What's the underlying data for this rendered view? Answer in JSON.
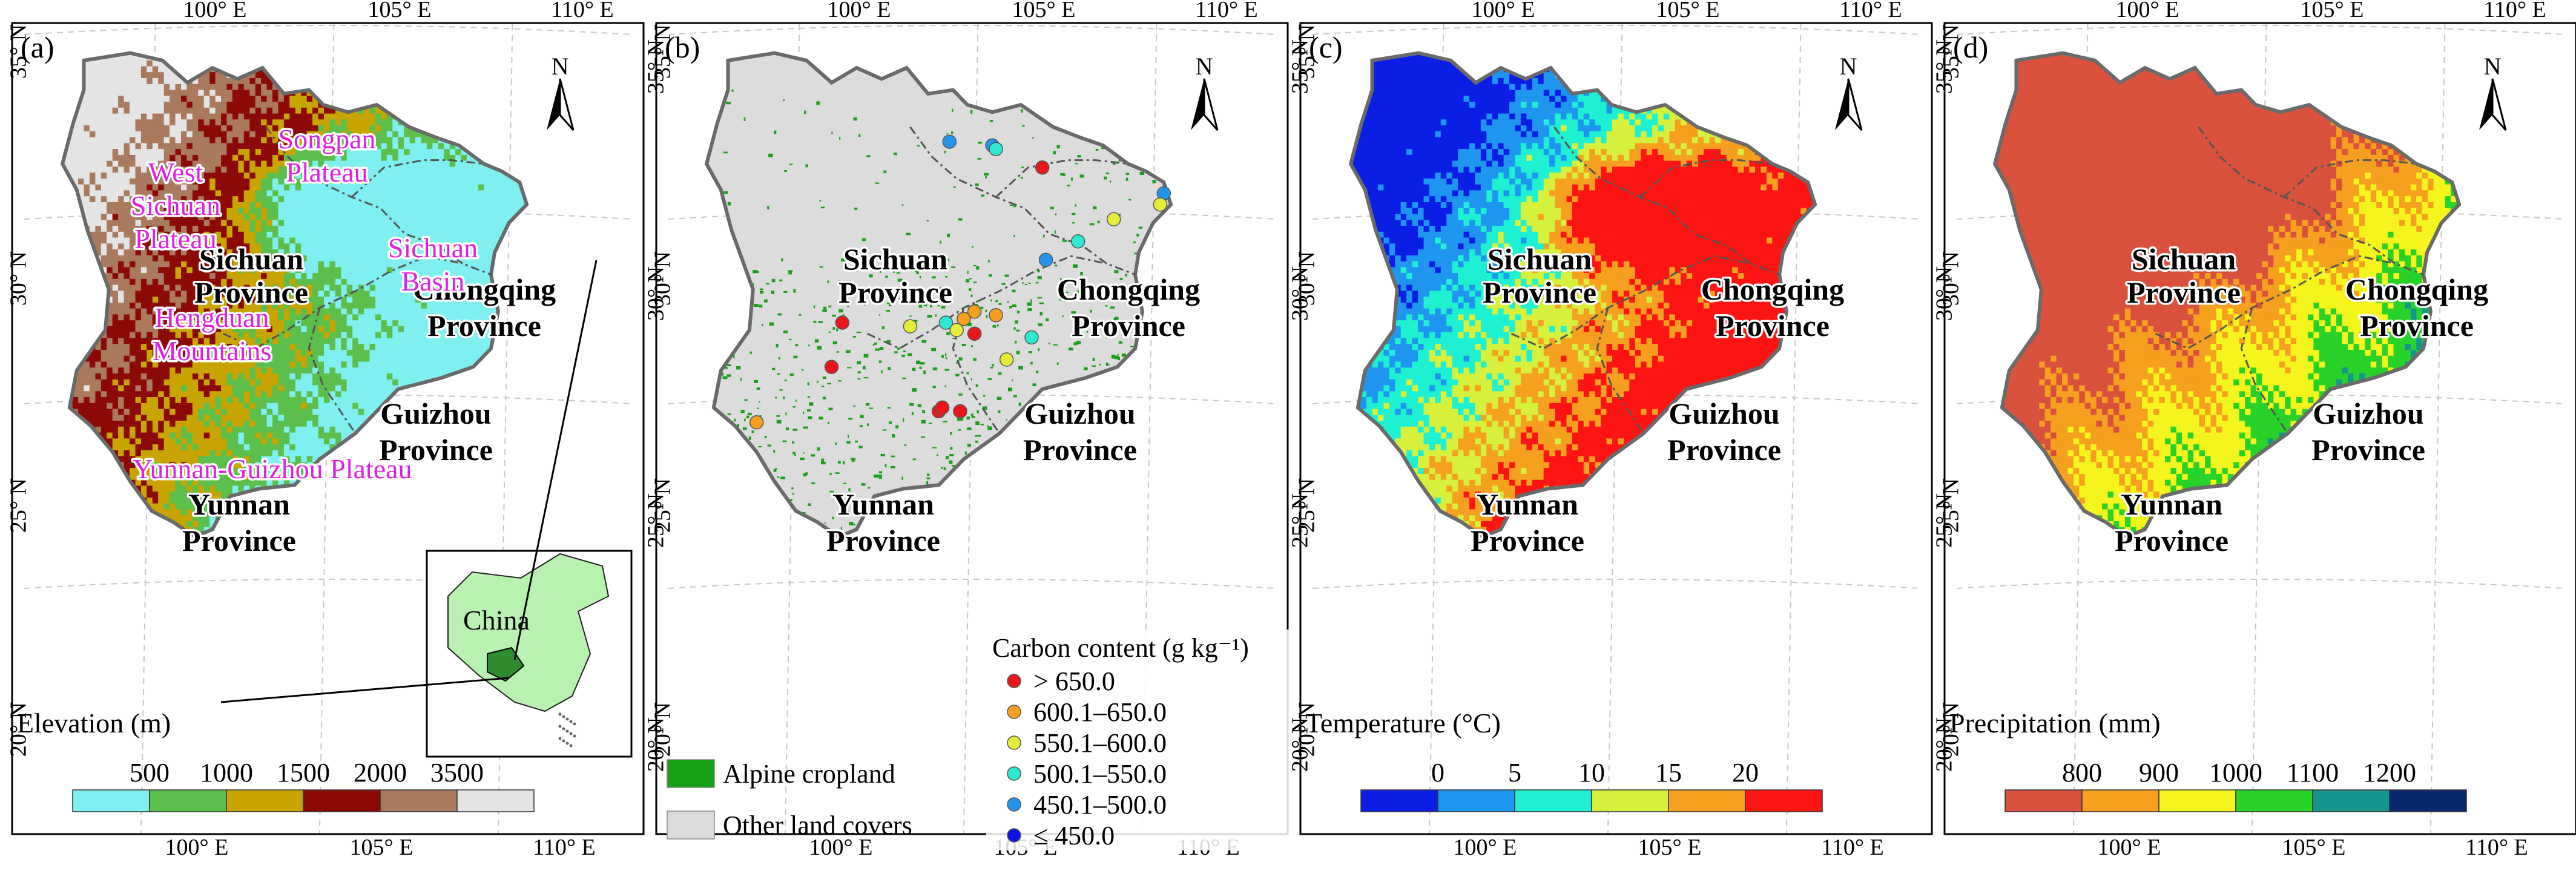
{
  "panels": [
    {
      "letter": "(a)",
      "variable_title": "Elevation (m)",
      "colorbar": {
        "labels": [
          "500",
          "1000",
          "1500",
          "2000",
          "3500"
        ],
        "colors": [
          "#7fefef",
          "#5cbf4b",
          "#c8a400",
          "#8b0a05",
          "#a97a5e",
          "#e4e4e4"
        ]
      },
      "map_colors": [
        "#7fefef",
        "#5cbf4b",
        "#c8a400",
        "#8b0a05",
        "#a97a5e",
        "#e4e4e4"
      ],
      "provinces": [
        "Sichuan Province",
        "Chongqing Province",
        "Guizhou Province",
        "Yunnan Province"
      ],
      "physiographic_labels": [
        "Songpan Plateau",
        "West Sichuan Plateau",
        "Sichuan Basin",
        "Hengduan Mountains",
        "Yunnan-Guizhou Plateau"
      ],
      "inset_label": "China",
      "inset_colors": {
        "land": "#b9f2b0",
        "highlight": "#2e8b2e"
      }
    },
    {
      "letter": "(b)",
      "provinces": [
        "Sichuan Province",
        "Chongqing Province",
        "Guizhou Province",
        "Yunnan Province"
      ],
      "land_legend": [
        {
          "label": "Alpine cropland",
          "color": "#18a018"
        },
        {
          "label": "Other land covers",
          "color": "#dcdcdc"
        }
      ],
      "carbon_legend": {
        "title": "Carbon content (g kg⁻¹)",
        "items": [
          {
            "label": "> 650.0",
            "color": "#e8181a"
          },
          {
            "label": "600.1–650.0",
            "color": "#f5a01e"
          },
          {
            "label": "550.1–600.0",
            "color": "#e6ec3a"
          },
          {
            "label": "500.1–550.0",
            "color": "#2ee8d2"
          },
          {
            "label": "450.1–500.0",
            "color": "#2294ec"
          },
          {
            "label": "≤ 450.0",
            "color": "#0a14e6"
          }
        ]
      }
    },
    {
      "letter": "(c)",
      "variable_title": "Temperature (°C)",
      "colorbar": {
        "labels": [
          "0",
          "5",
          "10",
          "15",
          "20"
        ],
        "colors": [
          "#0a1ee6",
          "#1e96f0",
          "#1ef0d2",
          "#d7f03c",
          "#f5a01e",
          "#ff1414"
        ]
      },
      "map_colors": [
        "#0a1ee6",
        "#1e96f0",
        "#1ef0d2",
        "#d7f03c",
        "#f5a01e",
        "#ff1414"
      ],
      "provinces": [
        "Sichuan Province",
        "Chongqing Province",
        "Guizhou Province",
        "Yunnan Province"
      ]
    },
    {
      "letter": "(d)",
      "variable_title": "Precipitation (mm)",
      "colorbar": {
        "labels": [
          "800",
          "900",
          "1000",
          "1100",
          "1200"
        ],
        "colors": [
          "#d9503c",
          "#f5a01e",
          "#f5f51e",
          "#28d228",
          "#14968c",
          "#0a2870"
        ]
      },
      "map_colors": [
        "#d9503c",
        "#f5a01e",
        "#f5f51e",
        "#28d228",
        "#14968c",
        "#0a2870"
      ],
      "provinces": [
        "Sichuan Province",
        "Chongqing Province",
        "Guizhou Province",
        "Yunnan Province"
      ]
    }
  ],
  "axis_ticks": {
    "lon": [
      "100° E",
      "105° E",
      "110° E"
    ],
    "lat": [
      "35° N",
      "30° N",
      "25° N",
      "20° N"
    ]
  },
  "north_label": "N",
  "sample_points": [
    {
      "lon": 104.2,
      "lat": 31.9,
      "class": 4
    },
    {
      "lon": 105.4,
      "lat": 31.8,
      "class": 4
    },
    {
      "lon": 105.5,
      "lat": 31.7,
      "class": 3
    },
    {
      "lon": 106.8,
      "lat": 31.2,
      "class": 0
    },
    {
      "lon": 110.2,
      "lat": 30.5,
      "class": 4
    },
    {
      "lon": 110.1,
      "lat": 30.2,
      "class": 2
    },
    {
      "lon": 108.8,
      "lat": 29.8,
      "class": 2
    },
    {
      "lon": 107.8,
      "lat": 29.2,
      "class": 3
    },
    {
      "lon": 106.9,
      "lat": 28.7,
      "class": 4
    },
    {
      "lon": 101.2,
      "lat": 27.0,
      "class": 0
    },
    {
      "lon": 103.1,
      "lat": 26.9,
      "class": 2
    },
    {
      "lon": 104.9,
      "lat": 27.3,
      "class": 1
    },
    {
      "lon": 104.6,
      "lat": 27.1,
      "class": 1
    },
    {
      "lon": 105.5,
      "lat": 27.2,
      "class": 1
    },
    {
      "lon": 104.1,
      "lat": 27.0,
      "class": 3
    },
    {
      "lon": 104.4,
      "lat": 26.8,
      "class": 2
    },
    {
      "lon": 104.9,
      "lat": 26.7,
      "class": 0
    },
    {
      "lon": 106.5,
      "lat": 26.6,
      "class": 3
    },
    {
      "lon": 100.9,
      "lat": 25.8,
      "class": 0
    },
    {
      "lon": 105.8,
      "lat": 26.0,
      "class": 2
    },
    {
      "lon": 103.9,
      "lat": 24.6,
      "class": 0
    },
    {
      "lon": 104.0,
      "lat": 24.7,
      "class": 0
    },
    {
      "lon": 104.5,
      "lat": 24.6,
      "class": 0
    },
    {
      "lon": 98.8,
      "lat": 24.3,
      "class": 1
    }
  ]
}
